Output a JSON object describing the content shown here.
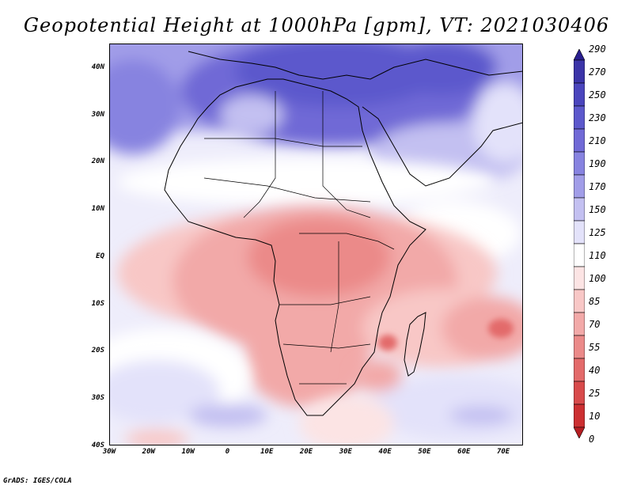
{
  "title": "Geopotential Height at 1000hPa [gpm], VT: 2021030406",
  "variable": "Geopotential Height at 1000hPa",
  "units": "gpm",
  "valid_time": "2021030406",
  "map": {
    "lat_labels": [
      "40N",
      "30N",
      "20N",
      "10N",
      "EQ",
      "10S",
      "20S",
      "30S",
      "40S"
    ],
    "lon_labels": [
      "30W",
      "20W",
      "10W",
      "0",
      "10E",
      "20E",
      "30E",
      "40E",
      "50E",
      "60E",
      "70E"
    ],
    "lat_range": [
      -40,
      45
    ],
    "lon_range": [
      -30,
      75
    ]
  },
  "colorbar": {
    "levels": [
      "290",
      "270",
      "250",
      "230",
      "210",
      "190",
      "170",
      "150",
      "125",
      "110",
      "100",
      "85",
      "70",
      "55",
      "40",
      "25",
      "10",
      "0"
    ],
    "colors": [
      "#2a1f8f",
      "#3b34a8",
      "#4a45bd",
      "#5c58cc",
      "#7069d6",
      "#8783e0",
      "#a19de8",
      "#c3c0f1",
      "#e3e2fa",
      "#ffffff",
      "#fce4e4",
      "#f8c7c6",
      "#f2a9a8",
      "#eb8a89",
      "#e36a6a",
      "#d84a4b",
      "#cc2f31",
      "#b51e22"
    ]
  },
  "credit": "GrADS: IGES/COLA"
}
